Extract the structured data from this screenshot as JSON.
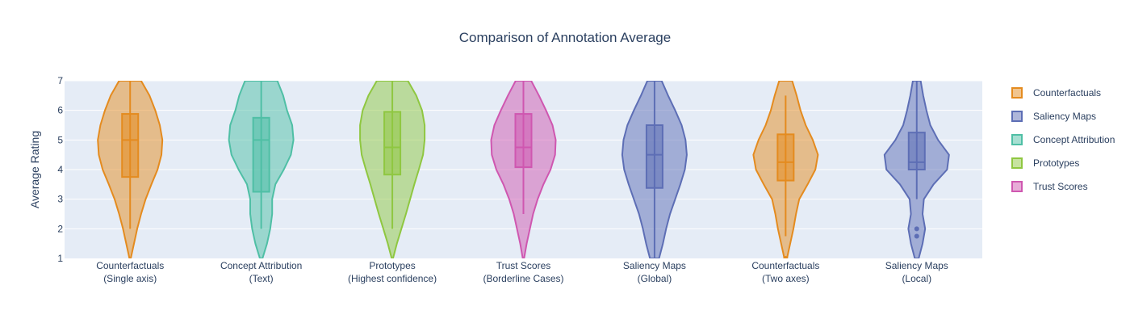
{
  "chart_data": {
    "type": "violin",
    "title": "Comparison of Annotation Average",
    "xlabel": "",
    "ylabel": "Average Rating",
    "ylim": [
      1,
      7
    ],
    "yticks": [
      1,
      2,
      3,
      4,
      5,
      6,
      7
    ],
    "grid": true,
    "legend_position": "right",
    "categories": [
      {
        "line1": "Counterfactuals",
        "line2": "(Single axis)"
      },
      {
        "line1": "Concept Attribution",
        "line2": "(Text)"
      },
      {
        "line1": "Prototypes",
        "line2": "(Highest confidence)"
      },
      {
        "line1": "Trust Scores",
        "line2": "(Borderline Cases)"
      },
      {
        "line1": "Saliency Maps",
        "line2": "(Global)"
      },
      {
        "line1": "Counterfactuals",
        "line2": "(Two axes)"
      },
      {
        "line1": "Saliency Maps",
        "line2": "(Local)"
      }
    ],
    "legend": [
      {
        "name": "Counterfactuals",
        "color": "#e48b1f"
      },
      {
        "name": "Saliency Maps",
        "color": "#5d6eb5"
      },
      {
        "name": "Concept Attribution",
        "color": "#4fbfa5"
      },
      {
        "name": "Prototypes",
        "color": "#8fc741"
      },
      {
        "name": "Trust Scores",
        "color": "#cf57b0"
      }
    ],
    "violins": [
      {
        "group": "Counterfactuals",
        "color": "#e48b1f",
        "whisker_low": 2.0,
        "q1": 3.75,
        "median": 5.0,
        "q3": 5.88,
        "whisker_high": 7.0,
        "outliers": [],
        "density": [
          [
            1.0,
            0.02
          ],
          [
            1.5,
            0.12
          ],
          [
            2.0,
            0.22
          ],
          [
            2.5,
            0.34
          ],
          [
            3.0,
            0.48
          ],
          [
            3.5,
            0.66
          ],
          [
            4.0,
            0.85
          ],
          [
            4.5,
            0.97
          ],
          [
            5.0,
            1.0
          ],
          [
            5.5,
            0.92
          ],
          [
            6.0,
            0.78
          ],
          [
            6.5,
            0.6
          ],
          [
            7.0,
            0.34
          ]
        ]
      },
      {
        "group": "Concept Attribution",
        "color": "#4fbfa5",
        "whisker_low": 2.0,
        "q1": 3.25,
        "median": 5.0,
        "q3": 5.75,
        "whisker_high": 7.0,
        "outliers": [],
        "density": [
          [
            1.0,
            0.04
          ],
          [
            1.5,
            0.18
          ],
          [
            2.0,
            0.28
          ],
          [
            2.5,
            0.34
          ],
          [
            3.0,
            0.34
          ],
          [
            3.5,
            0.44
          ],
          [
            4.0,
            0.7
          ],
          [
            4.5,
            0.92
          ],
          [
            5.0,
            1.0
          ],
          [
            5.5,
            0.96
          ],
          [
            6.0,
            0.8
          ],
          [
            6.5,
            0.68
          ],
          [
            7.0,
            0.5
          ]
        ]
      },
      {
        "group": "Prototypes",
        "color": "#8fc741",
        "whisker_low": 2.0,
        "q1": 3.83,
        "median": 4.75,
        "q3": 5.95,
        "whisker_high": 7.0,
        "outliers": [],
        "density": [
          [
            1.0,
            0.02
          ],
          [
            1.5,
            0.14
          ],
          [
            2.0,
            0.28
          ],
          [
            2.5,
            0.42
          ],
          [
            3.0,
            0.55
          ],
          [
            3.5,
            0.68
          ],
          [
            4.0,
            0.82
          ],
          [
            4.5,
            0.95
          ],
          [
            5.0,
            1.0
          ],
          [
            5.5,
            1.0
          ],
          [
            6.0,
            0.92
          ],
          [
            6.5,
            0.74
          ],
          [
            7.0,
            0.48
          ]
        ]
      },
      {
        "group": "Trust Scores",
        "color": "#cf57b0",
        "whisker_low": 2.5,
        "q1": 4.08,
        "median": 4.75,
        "q3": 5.88,
        "whisker_high": 7.0,
        "outliers": [],
        "density": [
          [
            1.0,
            0.02
          ],
          [
            1.5,
            0.1
          ],
          [
            2.0,
            0.2
          ],
          [
            2.5,
            0.3
          ],
          [
            3.0,
            0.44
          ],
          [
            3.5,
            0.62
          ],
          [
            4.0,
            0.84
          ],
          [
            4.5,
            0.98
          ],
          [
            5.0,
            1.0
          ],
          [
            5.5,
            0.9
          ],
          [
            6.0,
            0.7
          ],
          [
            6.5,
            0.48
          ],
          [
            7.0,
            0.24
          ]
        ]
      },
      {
        "group": "Saliency Maps",
        "color": "#5d6eb5",
        "whisker_low": 1.0,
        "q1": 3.38,
        "median": 4.5,
        "q3": 5.5,
        "whisker_high": 7.0,
        "outliers": [],
        "density": [
          [
            1.0,
            0.14
          ],
          [
            1.5,
            0.26
          ],
          [
            2.0,
            0.36
          ],
          [
            2.5,
            0.48
          ],
          [
            3.0,
            0.64
          ],
          [
            3.5,
            0.8
          ],
          [
            4.0,
            0.94
          ],
          [
            4.5,
            1.0
          ],
          [
            5.0,
            0.96
          ],
          [
            5.5,
            0.84
          ],
          [
            6.0,
            0.64
          ],
          [
            6.5,
            0.42
          ],
          [
            7.0,
            0.22
          ]
        ]
      },
      {
        "group": "Counterfactuals",
        "color": "#e48b1f",
        "whisker_low": 1.75,
        "q1": 3.63,
        "median": 4.25,
        "q3": 5.19,
        "whisker_high": 6.5,
        "outliers": [
          1.0
        ],
        "density": [
          [
            1.0,
            0.04
          ],
          [
            1.5,
            0.14
          ],
          [
            2.0,
            0.24
          ],
          [
            2.5,
            0.32
          ],
          [
            3.0,
            0.42
          ],
          [
            3.5,
            0.68
          ],
          [
            4.0,
            0.92
          ],
          [
            4.5,
            1.0
          ],
          [
            5.0,
            0.84
          ],
          [
            5.5,
            0.62
          ],
          [
            6.0,
            0.46
          ],
          [
            6.5,
            0.34
          ],
          [
            7.0,
            0.2
          ]
        ]
      },
      {
        "group": "Saliency Maps",
        "color": "#5d6eb5",
        "whisker_low": 3.0,
        "q1": 4.0,
        "median": 4.25,
        "q3": 5.25,
        "whisker_high": 7.0,
        "outliers": [
          2.0,
          1.75
        ],
        "density": [
          [
            1.0,
            0.06
          ],
          [
            1.5,
            0.18
          ],
          [
            2.0,
            0.26
          ],
          [
            2.5,
            0.18
          ],
          [
            3.0,
            0.22
          ],
          [
            3.5,
            0.52
          ],
          [
            4.0,
            0.94
          ],
          [
            4.5,
            1.0
          ],
          [
            5.0,
            0.66
          ],
          [
            5.5,
            0.42
          ],
          [
            6.0,
            0.3
          ],
          [
            6.5,
            0.2
          ],
          [
            7.0,
            0.12
          ]
        ]
      }
    ]
  }
}
